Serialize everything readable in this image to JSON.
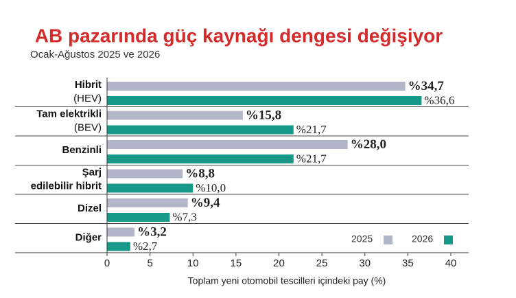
{
  "chart_data": {
    "type": "bar",
    "orientation": "horizontal",
    "title": "AB pazarında güç kaynağı dengesi değişiyor",
    "subtitle": "Ocak-Ağustos 2025 ve 2026",
    "x_label": "Toplam yeni otomobil tescilleri içindeki pay (%)",
    "categories": [
      {
        "name": [
          "Hibrit"
        ],
        "detail": "(HEV)"
      },
      {
        "name": [
          "Tam elektrikli"
        ],
        "detail": "(BEV)"
      },
      {
        "name": [
          "Benzinli"
        ]
      },
      {
        "name": [
          "Şarj",
          "edilebilir hibrit"
        ]
      },
      {
        "name": [
          "Dizel"
        ]
      },
      {
        "name": [
          "Diğer"
        ]
      }
    ],
    "series": [
      {
        "name": "2025",
        "color": "#b3b5c8",
        "values": [
          34.7,
          15.8,
          28.0,
          8.8,
          9.4,
          3.2
        ],
        "value_labels": [
          "%34,7",
          "%15,8",
          "%28,0",
          "%8,8",
          "%9,4",
          "%3,2"
        ]
      },
      {
        "name": "2026",
        "color": "#17998a",
        "values": [
          36.6,
          21.7,
          21.7,
          10.0,
          7.3,
          2.7
        ],
        "value_labels": [
          "%36,6",
          "%21,7",
          "%21,7",
          "%10,0",
          "%7,3",
          "%2,7"
        ]
      }
    ],
    "xlim": [
      0,
      40
    ],
    "xticks": [
      0,
      5,
      10,
      15,
      20,
      25,
      30,
      35,
      40
    ],
    "legend": "bottom-right"
  }
}
